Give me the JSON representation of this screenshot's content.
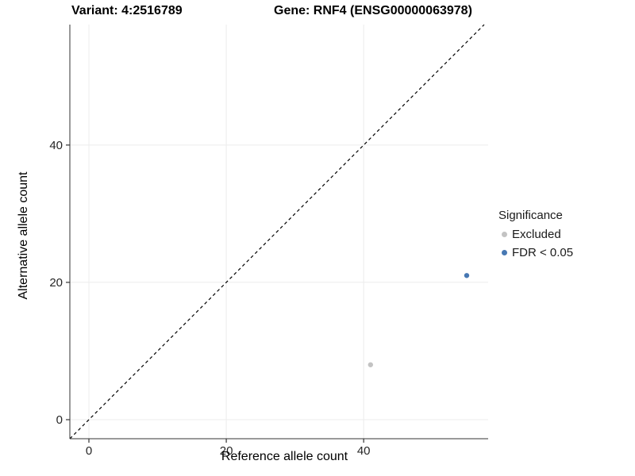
{
  "titles": {
    "variant": "Variant: 4:2516789",
    "gene": "Gene: RNF4 (ENSG00000063978)"
  },
  "legend": {
    "title": "Significance",
    "items": [
      {
        "label": "Excluded",
        "color": "#c3c3c3"
      },
      {
        "label": "FDR < 0.05",
        "color": "#4778b3"
      }
    ]
  },
  "chart_data": {
    "type": "scatter",
    "title": "Variant: 4:2516789   Gene: RNF4 (ENSG00000063978)",
    "xlabel": "Reference allele count",
    "ylabel": "Alternative allele count",
    "x_ticks": [
      0,
      20,
      40
    ],
    "y_ticks": [
      0,
      20,
      40
    ],
    "xlim": [
      -2.8,
      58.2
    ],
    "ylim": [
      -2.8,
      57.5
    ],
    "grid": true,
    "legend_position": "right",
    "diagonal_line": {
      "equation": "y = x",
      "style": "dashed",
      "color": "#000000"
    },
    "points": [
      {
        "x": 41,
        "y": 8,
        "group": "Excluded"
      },
      {
        "x": 55,
        "y": 21,
        "group": "FDR < 0.05"
      }
    ],
    "style": {
      "grid_color": "#ececec",
      "axis_color": "#333333",
      "tick_label_color": "#262626",
      "axis_title_color": "#000000",
      "tick_label_size": 15,
      "axis_title_size": 16,
      "point_radius": 3.2
    }
  }
}
